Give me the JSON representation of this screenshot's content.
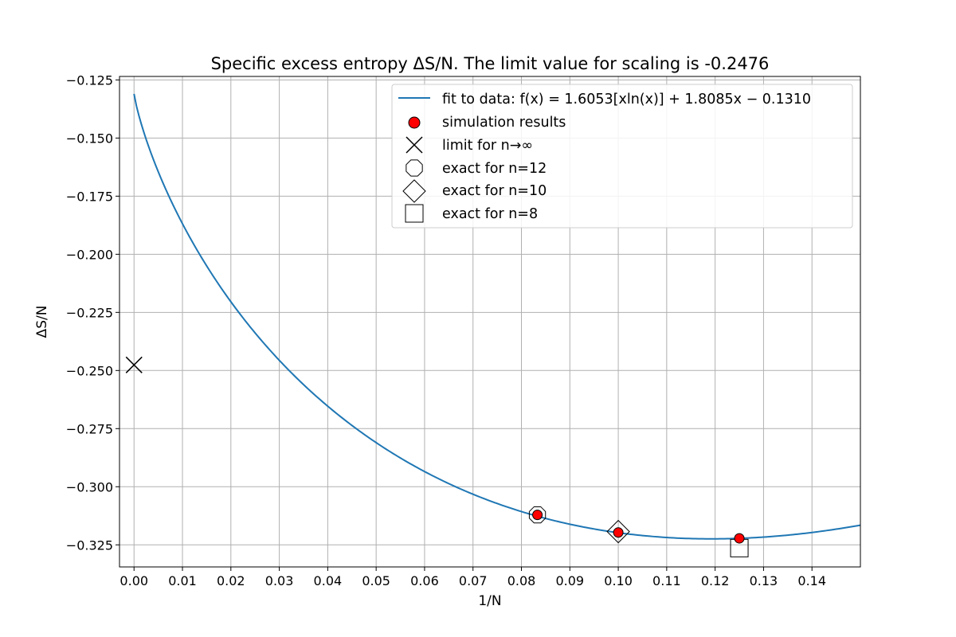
{
  "chart_data": {
    "type": "scatter",
    "title": "Specific excess entropy ΔS/N.  The limit value for scaling is -0.2476",
    "xlabel": "1/N",
    "ylabel": "ΔS/N",
    "xlim": [
      -0.003,
      0.15
    ],
    "ylim": [
      -0.3345,
      -0.1235
    ],
    "x_ticks": [
      "0.00",
      "0.01",
      "0.02",
      "0.03",
      "0.04",
      "0.05",
      "0.06",
      "0.07",
      "0.08",
      "0.09",
      "0.10",
      "0.11",
      "0.12",
      "0.13",
      "0.14"
    ],
    "x_tick_values": [
      0,
      0.01,
      0.02,
      0.03,
      0.04,
      0.05,
      0.06,
      0.07,
      0.08,
      0.09,
      0.1,
      0.11,
      0.12,
      0.13,
      0.14
    ],
    "y_ticks": [
      "−0.125",
      "−0.150",
      "−0.175",
      "−0.200",
      "−0.225",
      "−0.250",
      "−0.275",
      "−0.300",
      "−0.325"
    ],
    "y_tick_values": [
      -0.125,
      -0.15,
      -0.175,
      -0.2,
      -0.225,
      -0.25,
      -0.275,
      -0.3,
      -0.325
    ],
    "grid": true,
    "legend_position": "top-right",
    "fit": {
      "a": 1.6053,
      "b": 1.8085,
      "c": -0.131,
      "color": "#1f77b4"
    },
    "series": [
      {
        "name": " fit to data: f(x) = 1.6053[xln(x)] + 1.8085x − 0.1310",
        "marker": "line",
        "x": [],
        "y": []
      },
      {
        "name": "simulation results",
        "marker": "circle",
        "color": "#ff0000",
        "x": [
          0.0833,
          0.1,
          0.125
        ],
        "y": [
          -0.3121,
          -0.3197,
          -0.3222
        ]
      },
      {
        "name": "limit for n→∞",
        "marker": "x",
        "x": [
          0.0
        ],
        "y": [
          -0.2476
        ]
      },
      {
        "name": "exact for n=12",
        "marker": "octagon",
        "x": [
          0.0833
        ],
        "y": [
          -0.3121
        ]
      },
      {
        "name": "exact for  n=10",
        "marker": "diamond",
        "x": [
          0.1
        ],
        "y": [
          -0.3193
        ]
      },
      {
        "name": "exact for  n=8",
        "marker": "square",
        "x": [
          0.125
        ],
        "y": [
          -0.3264
        ]
      }
    ]
  }
}
